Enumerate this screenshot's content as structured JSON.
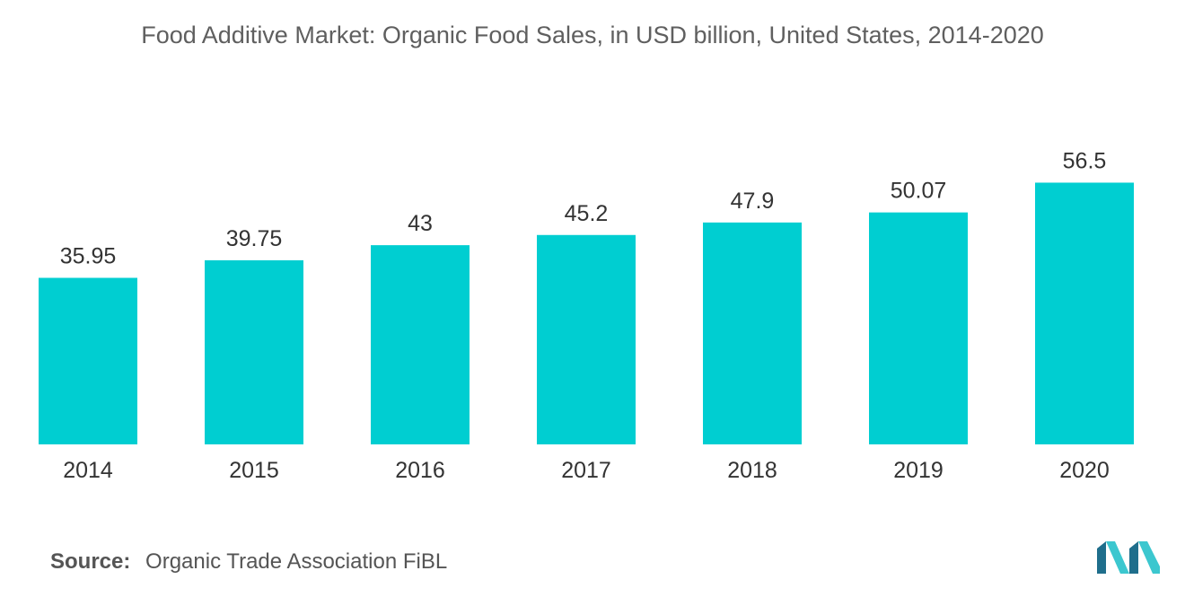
{
  "title": "Food Additive Market: Organic Food Sales, in USD billion, United States, 2014-2020",
  "source": {
    "label": "Source:",
    "text": "Organic Trade Association FiBL"
  },
  "colors": {
    "bar": "#00CED1",
    "text": "#333333",
    "title": "#5f5f5f",
    "logo_dark": "#1f6e8c",
    "logo_light": "#3cc7cf"
  },
  "logo_icon": "market-logo",
  "chart_data": {
    "type": "bar",
    "title": "Food Additive Market: Organic Food Sales, in USD billion, United States, 2014-2020",
    "xlabel": "",
    "ylabel": "",
    "categories": [
      "2014",
      "2015",
      "2016",
      "2017",
      "2018",
      "2019",
      "2020"
    ],
    "values": [
      35.95,
      39.75,
      43,
      45.2,
      47.9,
      50.07,
      56.5
    ],
    "value_labels": [
      "35.95",
      "39.75",
      "43",
      "45.2",
      "47.9",
      "50.07",
      "56.5"
    ],
    "ylim": [
      0,
      60
    ],
    "grid": false,
    "legend": "none"
  }
}
